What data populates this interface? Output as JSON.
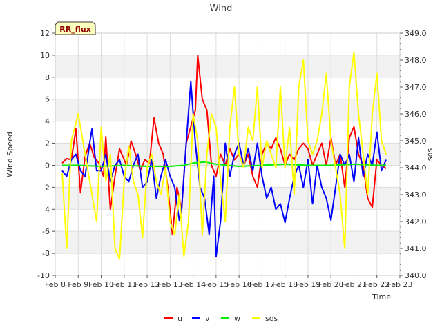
{
  "chart_data": {
    "type": "line",
    "title": "Wind",
    "badge": "RR_flux",
    "xlabel": "Time",
    "ylabel_left": "Wind Speed",
    "ylabel_right": "sos",
    "x_ticks": [
      "Feb 8",
      "Feb 9",
      "Feb 10",
      "Feb 11",
      "Feb 12",
      "Feb 13",
      "Feb 14",
      "Feb 15",
      "Feb 16",
      "Feb 17",
      "Feb 18",
      "Feb 19",
      "Feb 20",
      "Feb 21",
      "Feb 22",
      "Feb 23"
    ],
    "xlim": [
      8,
      23
    ],
    "ylim_left": [
      -10,
      12
    ],
    "y_ticks_left": [
      -10,
      -8,
      -6,
      -4,
      -2,
      0,
      2,
      4,
      6,
      8,
      10,
      12
    ],
    "ylim_right": [
      340.0,
      349.0
    ],
    "y_ticks_right": [
      340.0,
      341.0,
      342.0,
      343.0,
      344.0,
      345.0,
      346.0,
      347.0,
      348.0,
      349.0
    ],
    "grid": true,
    "legend_placement": "bottom-center",
    "series": [
      {
        "name": "u",
        "color": "#ff0000",
        "axis": "left",
        "points": [
          [
            8.3,
            0.2
          ],
          [
            8.5,
            0.6
          ],
          [
            8.7,
            0.5
          ],
          [
            8.9,
            3.3
          ],
          [
            9.1,
            -2.5
          ],
          [
            9.3,
            0.8
          ],
          [
            9.5,
            2.0
          ],
          [
            9.7,
            0.7
          ],
          [
            9.9,
            0.2
          ],
          [
            10.1,
            -1.0
          ],
          [
            10.2,
            2.6
          ],
          [
            10.4,
            -4.0
          ],
          [
            10.6,
            -1.0
          ],
          [
            10.8,
            1.5
          ],
          [
            11.0,
            0.5
          ],
          [
            11.1,
            0.0
          ],
          [
            11.3,
            2.2
          ],
          [
            11.5,
            1.0
          ],
          [
            11.7,
            -0.5
          ],
          [
            11.9,
            0.5
          ],
          [
            12.1,
            0.2
          ],
          [
            12.3,
            4.3
          ],
          [
            12.5,
            2.0
          ],
          [
            12.7,
            1.0
          ],
          [
            12.9,
            -2.0
          ],
          [
            13.1,
            -6.3
          ],
          [
            13.3,
            -2.0
          ],
          [
            13.5,
            -4.0
          ],
          [
            13.7,
            2.0
          ],
          [
            13.9,
            3.5
          ],
          [
            14.1,
            5.0
          ],
          [
            14.2,
            10.0
          ],
          [
            14.4,
            6.0
          ],
          [
            14.6,
            5.0
          ],
          [
            14.8,
            0.0
          ],
          [
            15.0,
            -1.0
          ],
          [
            15.2,
            1.0
          ],
          [
            15.4,
            0.0
          ],
          [
            15.6,
            1.5
          ],
          [
            15.8,
            0.5
          ],
          [
            16.0,
            1.0
          ],
          [
            16.2,
            0.0
          ],
          [
            16.4,
            1.0
          ],
          [
            16.6,
            -1.0
          ],
          [
            16.8,
            -2.0
          ],
          [
            17.0,
            1.0
          ],
          [
            17.2,
            2.0
          ],
          [
            17.4,
            1.5
          ],
          [
            17.6,
            2.5
          ],
          [
            17.8,
            1.5
          ],
          [
            18.0,
            0.0
          ],
          [
            18.2,
            1.0
          ],
          [
            18.4,
            0.5
          ],
          [
            18.6,
            1.5
          ],
          [
            18.8,
            2.0
          ],
          [
            19.0,
            1.5
          ],
          [
            19.2,
            0.0
          ],
          [
            19.4,
            1.0
          ],
          [
            19.6,
            2.0
          ],
          [
            19.8,
            0.0
          ],
          [
            20.0,
            2.5
          ],
          [
            20.2,
            0.0
          ],
          [
            20.4,
            1.0
          ],
          [
            20.6,
            -2.0
          ],
          [
            20.8,
            2.5
          ],
          [
            21.0,
            3.5
          ],
          [
            21.2,
            1.0
          ],
          [
            21.4,
            0.0
          ],
          [
            21.6,
            -3.0
          ],
          [
            21.8,
            -3.8
          ],
          [
            22.0,
            0.5
          ],
          [
            22.2,
            0.0
          ],
          [
            22.4,
            -0.3
          ]
        ]
      },
      {
        "name": "v",
        "color": "#0000ff",
        "axis": "left",
        "points": [
          [
            8.3,
            -0.5
          ],
          [
            8.5,
            -1.0
          ],
          [
            8.7,
            0.5
          ],
          [
            8.9,
            1.0
          ],
          [
            9.1,
            -0.5
          ],
          [
            9.3,
            -1.0
          ],
          [
            9.5,
            2.0
          ],
          [
            9.6,
            3.3
          ],
          [
            9.8,
            -0.5
          ],
          [
            10.0,
            -0.5
          ],
          [
            10.2,
            1.0
          ],
          [
            10.4,
            -1.5
          ],
          [
            10.6,
            0.0
          ],
          [
            10.8,
            0.5
          ],
          [
            11.0,
            -1.0
          ],
          [
            11.2,
            -1.5
          ],
          [
            11.4,
            0.0
          ],
          [
            11.6,
            1.0
          ],
          [
            11.8,
            -2.0
          ],
          [
            12.0,
            -1.5
          ],
          [
            12.2,
            0.5
          ],
          [
            12.4,
            -3.0
          ],
          [
            12.6,
            -1.0
          ],
          [
            12.8,
            0.5
          ],
          [
            13.0,
            -1.0
          ],
          [
            13.2,
            -2.0
          ],
          [
            13.4,
            -5.0
          ],
          [
            13.5,
            -4.0
          ],
          [
            13.7,
            2.0
          ],
          [
            13.9,
            7.6
          ],
          [
            14.1,
            2.0
          ],
          [
            14.3,
            -2.0
          ],
          [
            14.5,
            -3.0
          ],
          [
            14.7,
            -6.3
          ],
          [
            14.9,
            -1.0
          ],
          [
            15.0,
            -8.3
          ],
          [
            15.2,
            -5.0
          ],
          [
            15.4,
            2.0
          ],
          [
            15.6,
            -1.0
          ],
          [
            15.8,
            1.0
          ],
          [
            16.0,
            2.0
          ],
          [
            16.2,
            0.0
          ],
          [
            16.4,
            1.5
          ],
          [
            16.6,
            -0.5
          ],
          [
            16.8,
            2.0
          ],
          [
            17.0,
            -1.0
          ],
          [
            17.2,
            -3.0
          ],
          [
            17.4,
            -2.0
          ],
          [
            17.6,
            -4.0
          ],
          [
            17.8,
            -3.5
          ],
          [
            18.0,
            -5.2
          ],
          [
            18.2,
            -3.0
          ],
          [
            18.4,
            -1.0
          ],
          [
            18.6,
            0.0
          ],
          [
            18.8,
            -2.0
          ],
          [
            19.0,
            0.5
          ],
          [
            19.2,
            -3.5
          ],
          [
            19.4,
            0.0
          ],
          [
            19.6,
            -2.0
          ],
          [
            19.8,
            -3.0
          ],
          [
            20.0,
            -5.0
          ],
          [
            20.2,
            -2.0
          ],
          [
            20.4,
            1.0
          ],
          [
            20.6,
            0.0
          ],
          [
            20.8,
            1.0
          ],
          [
            21.0,
            -1.5
          ],
          [
            21.2,
            2.5
          ],
          [
            21.4,
            -1.0
          ],
          [
            21.6,
            1.0
          ],
          [
            21.8,
            0.0
          ],
          [
            22.0,
            3.0
          ],
          [
            22.2,
            -0.5
          ],
          [
            22.4,
            0.5
          ]
        ]
      },
      {
        "name": "w",
        "color": "#00ee00",
        "axis": "left",
        "points": [
          [
            8.3,
            0.0
          ],
          [
            9.0,
            0.0
          ],
          [
            10.0,
            -0.1
          ],
          [
            11.0,
            0.0
          ],
          [
            12.0,
            -0.1
          ],
          [
            13.0,
            -0.1
          ],
          [
            13.6,
            0.0
          ],
          [
            14.0,
            0.2
          ],
          [
            14.5,
            0.3
          ],
          [
            15.0,
            0.1
          ],
          [
            15.5,
            0.0
          ],
          [
            16.0,
            -0.1
          ],
          [
            17.0,
            0.0
          ],
          [
            18.0,
            0.1
          ],
          [
            19.0,
            0.0
          ],
          [
            20.0,
            0.0
          ],
          [
            21.0,
            0.1
          ],
          [
            22.0,
            0.0
          ],
          [
            22.4,
            0.0
          ]
        ]
      },
      {
        "name": "sos",
        "color": "#ffff00",
        "axis": "right",
        "points": [
          [
            8.3,
            343.8
          ],
          [
            8.5,
            341.0
          ],
          [
            8.7,
            345.0
          ],
          [
            9.0,
            346.0
          ],
          [
            9.2,
            345.0
          ],
          [
            9.4,
            344.0
          ],
          [
            9.6,
            343.0
          ],
          [
            9.8,
            342.0
          ],
          [
            10.0,
            345.5
          ],
          [
            10.2,
            343.5
          ],
          [
            10.4,
            344.5
          ],
          [
            10.6,
            341.0
          ],
          [
            10.8,
            340.6
          ],
          [
            11.0,
            343.5
          ],
          [
            11.2,
            344.8
          ],
          [
            11.4,
            343.5
          ],
          [
            11.6,
            343.0
          ],
          [
            11.8,
            341.4
          ],
          [
            12.0,
            344.0
          ],
          [
            12.2,
            344.5
          ],
          [
            12.4,
            343.5
          ],
          [
            12.6,
            343.0
          ],
          [
            12.8,
            344.0
          ],
          [
            13.0,
            342.0
          ],
          [
            13.2,
            341.5
          ],
          [
            13.4,
            343.0
          ],
          [
            13.6,
            340.7
          ],
          [
            13.8,
            342.0
          ],
          [
            14.0,
            346.0
          ],
          [
            14.2,
            345.0
          ],
          [
            14.4,
            341.5
          ],
          [
            14.6,
            344.5
          ],
          [
            14.8,
            346.0
          ],
          [
            15.0,
            345.5
          ],
          [
            15.2,
            343.5
          ],
          [
            15.4,
            342.0
          ],
          [
            15.6,
            345.5
          ],
          [
            15.8,
            347.0
          ],
          [
            16.0,
            344.5
          ],
          [
            16.2,
            344.0
          ],
          [
            16.4,
            345.5
          ],
          [
            16.6,
            345.0
          ],
          [
            16.8,
            347.0
          ],
          [
            17.0,
            344.0
          ],
          [
            17.2,
            345.0
          ],
          [
            17.4,
            344.5
          ],
          [
            17.6,
            344.0
          ],
          [
            17.8,
            347.0
          ],
          [
            18.0,
            344.0
          ],
          [
            18.2,
            345.5
          ],
          [
            18.4,
            343.0
          ],
          [
            18.6,
            347.0
          ],
          [
            18.8,
            348.0
          ],
          [
            19.0,
            345.0
          ],
          [
            19.2,
            344.5
          ],
          [
            19.4,
            345.0
          ],
          [
            19.6,
            346.0
          ],
          [
            19.8,
            347.5
          ],
          [
            20.0,
            345.0
          ],
          [
            20.2,
            344.0
          ],
          [
            20.4,
            343.0
          ],
          [
            20.6,
            341.0
          ],
          [
            20.8,
            347.0
          ],
          [
            21.0,
            348.3
          ],
          [
            21.2,
            346.0
          ],
          [
            21.4,
            344.5
          ],
          [
            21.6,
            343.0
          ],
          [
            21.8,
            346.0
          ],
          [
            22.0,
            347.5
          ],
          [
            22.2,
            345.0
          ],
          [
            22.4,
            344.5
          ]
        ]
      }
    ]
  }
}
